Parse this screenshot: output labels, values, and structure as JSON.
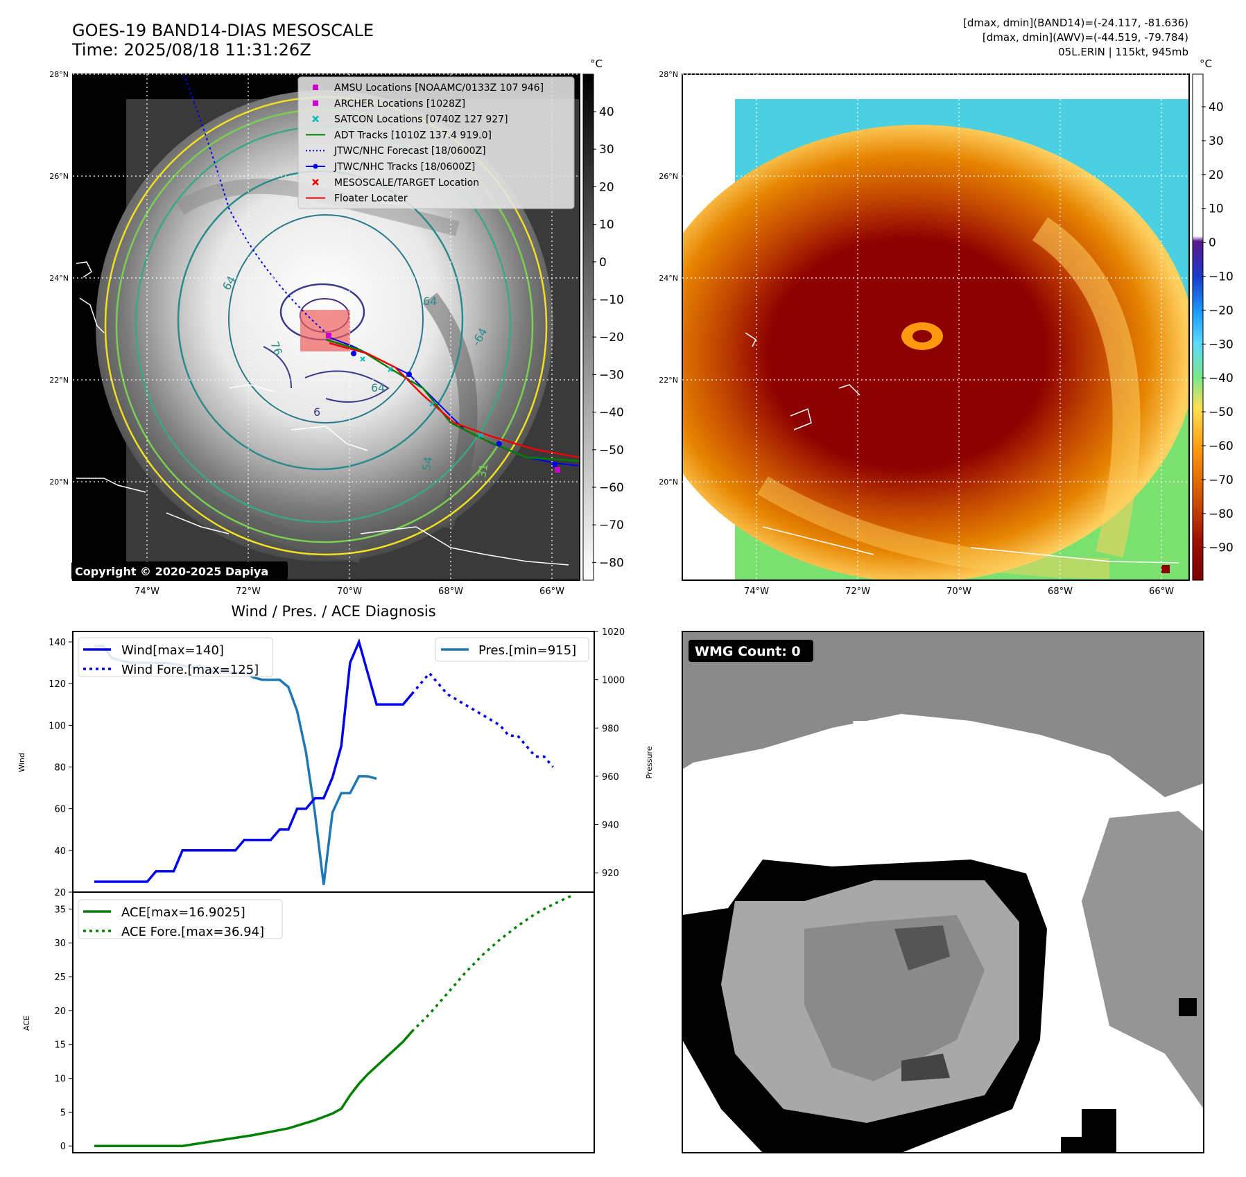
{
  "header": {
    "title_line1": "GOES-19 BAND14-DIAS MESOSCALE",
    "title_line2": "Time: 2025/08/18 11:31:26Z",
    "info_line1": "[dmax, dmin](BAND14)=(-24.117, -81.636)",
    "info_line2": "[dmax, dmin](AWV)=(-44.519, -79.784)",
    "info_line3": "05L.ERIN | 115kt, 945mb"
  },
  "map_axes": {
    "lat_labels": [
      "28°N",
      "26°N",
      "24°N",
      "22°N",
      "20°N"
    ],
    "lon_labels": [
      "74°W",
      "72°W",
      "70°W",
      "68°W",
      "66°W"
    ]
  },
  "ir_panel": {
    "colorbar_unit": "°C",
    "colorbar_ticks": [
      "40",
      "30",
      "20",
      "10",
      "0",
      "−10",
      "−20",
      "−30",
      "−40",
      "−50",
      "−60",
      "−70",
      "−80"
    ],
    "copyright": "Copyright © 2020-2025 Dapiya",
    "contour_labels": [
      "64",
      "76",
      "64",
      "6",
      "64",
      "54",
      "31",
      "-64"
    ],
    "legend": [
      {
        "label": "AMSU Locations [NOAAMC/0133Z 107 946]",
        "color": "#cc00cc",
        "marker": "square"
      },
      {
        "label": "ARCHER Locations [1028Z]",
        "color": "#cc00cc",
        "marker": "square"
      },
      {
        "label": "SATCON Locations [0740Z 127 927]",
        "color": "#00bcbc",
        "marker": "x"
      },
      {
        "label": "ADT Tracks [1010Z 137.4 919.0]",
        "color": "#008000",
        "marker": "line"
      },
      {
        "label": "JTWC/NHC Forecast [18/0600Z]",
        "color": "#0000ee",
        "marker": "dotted"
      },
      {
        "label": "JTWC/NHC Tracks [18/0600Z]",
        "color": "#0000ee",
        "marker": "line-dot"
      },
      {
        "label": "MESOSCALE/TARGET Location",
        "color": "#ee0000",
        "marker": "x"
      },
      {
        "label": "Floater Locater",
        "color": "#ee0000",
        "marker": "line"
      }
    ]
  },
  "wv_panel": {
    "colorbar_unit": "°C",
    "colorbar_ticks": [
      "40",
      "30",
      "20",
      "10",
      "0",
      "−10",
      "−20",
      "−30",
      "−40",
      "−50",
      "−60",
      "−70",
      "−80",
      "−90"
    ]
  },
  "wmg_panel": {
    "badge": "WMG Count: 0"
  },
  "chart_data": [
    {
      "type": "line",
      "title": "Wind / Pres. / ACE Diagnosis",
      "ylabel": "Wind",
      "ylabel_right": "Pressure",
      "ylim": [
        20,
        145
      ],
      "ylim_right": [
        912,
        1020
      ],
      "yticks": [
        20,
        40,
        60,
        80,
        100,
        120,
        140
      ],
      "yticks_right": [
        920,
        940,
        960,
        980,
        1000,
        1020
      ],
      "legend_left": [
        "Wind[max=140]",
        "Wind Fore.[max=125]"
      ],
      "legend_right": [
        "Pres.[min=915]"
      ],
      "x": [
        0,
        2,
        4,
        6,
        8,
        10,
        12,
        14,
        16,
        18,
        20,
        22,
        24,
        26,
        28,
        30,
        32,
        34,
        35,
        36,
        37,
        38,
        39,
        40,
        41,
        42,
        43,
        44,
        45,
        46,
        47,
        48,
        49,
        50,
        51,
        52,
        53,
        54
      ],
      "series": [
        {
          "name": "Wind",
          "color": "#0000ee",
          "style": "solid",
          "points": [
            [
              0,
              25
            ],
            [
              6,
              25
            ],
            [
              7,
              30
            ],
            [
              9,
              30
            ],
            [
              10,
              40
            ],
            [
              16,
              40
            ],
            [
              17,
              45
            ],
            [
              20,
              45
            ],
            [
              21,
              50
            ],
            [
              22,
              50
            ],
            [
              23,
              60
            ],
            [
              24,
              60
            ],
            [
              25,
              65
            ],
            [
              26,
              65
            ],
            [
              27,
              75
            ],
            [
              28,
              90
            ],
            [
              29,
              130
            ],
            [
              30,
              140
            ],
            [
              31,
              125
            ],
            [
              32,
              110
            ],
            [
              35,
              110
            ],
            [
              36,
              115
            ]
          ]
        },
        {
          "name": "Wind Fore.",
          "color": "#0000ee",
          "style": "dotted",
          "points": [
            [
              36,
              115
            ],
            [
              37,
              120
            ],
            [
              38,
              125
            ],
            [
              39,
              120
            ],
            [
              40,
              115
            ],
            [
              42,
              110
            ],
            [
              44,
              105
            ],
            [
              46,
              100
            ],
            [
              47,
              95
            ],
            [
              48,
              95
            ],
            [
              49,
              90
            ],
            [
              50,
              85
            ],
            [
              51,
              85
            ],
            [
              52,
              80
            ]
          ]
        },
        {
          "name": "Pres.",
          "color": "#1f77b4",
          "style": "solid",
          "axis": "right",
          "points": [
            [
              0,
              1014
            ],
            [
              1,
              1014
            ],
            [
              2,
              1009
            ],
            [
              3,
              1008
            ],
            [
              4,
              1007
            ],
            [
              8,
              1007
            ],
            [
              10,
              1006
            ],
            [
              11,
              1005
            ],
            [
              12,
              1006
            ],
            [
              13,
              1004
            ],
            [
              14,
              1003
            ],
            [
              17,
              1003
            ],
            [
              18,
              1001
            ],
            [
              19,
              1000
            ],
            [
              21,
              1000
            ],
            [
              22,
              997
            ],
            [
              23,
              987
            ],
            [
              24,
              970
            ],
            [
              25,
              945
            ],
            [
              26,
              915
            ],
            [
              27,
              945
            ],
            [
              28,
              953
            ],
            [
              29,
              953
            ],
            [
              30,
              960
            ],
            [
              31,
              960
            ],
            [
              32,
              959
            ]
          ]
        }
      ]
    },
    {
      "type": "line",
      "ylabel": "ACE",
      "ylim": [
        -1,
        37.5
      ],
      "yticks": [
        0,
        5,
        10,
        15,
        20,
        25,
        30,
        35
      ],
      "legend": [
        "ACE[max=16.9025]",
        "ACE Fore.[max=36.94]"
      ],
      "series": [
        {
          "name": "ACE",
          "color": "#008000",
          "style": "solid",
          "points": [
            [
              0,
              0
            ],
            [
              10,
              0
            ],
            [
              14,
              0.8
            ],
            [
              18,
              1.6
            ],
            [
              22,
              2.6
            ],
            [
              25,
              3.8
            ],
            [
              27,
              4.8
            ],
            [
              28,
              5.5
            ],
            [
              29,
              7.5
            ],
            [
              30,
              9.2
            ],
            [
              31,
              10.6
            ],
            [
              32,
              11.8
            ],
            [
              33,
              13
            ],
            [
              34,
              14.2
            ],
            [
              35,
              15.4
            ],
            [
              36,
              16.9
            ]
          ]
        },
        {
          "name": "ACE Fore.",
          "color": "#008000",
          "style": "dotted",
          "points": [
            [
              36,
              16.9
            ],
            [
              38,
              19.5
            ],
            [
              40,
              22.5
            ],
            [
              42,
              25.5
            ],
            [
              44,
              28.2
            ],
            [
              46,
              30.5
            ],
            [
              48,
              32.5
            ],
            [
              50,
              34.3
            ],
            [
              52,
              35.7
            ],
            [
              54,
              36.9
            ]
          ]
        }
      ]
    }
  ]
}
